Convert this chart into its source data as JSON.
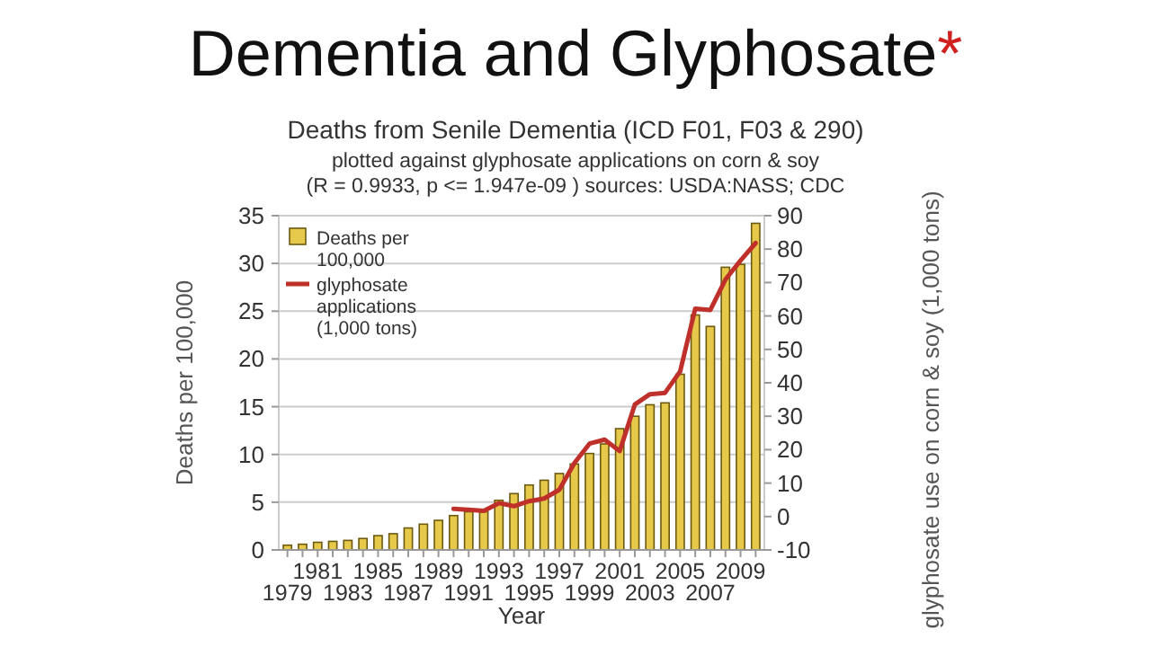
{
  "chart_data": {
    "type": "bar",
    "title": "Dementia and Glyphosate*",
    "subtitle": "Deaths from Senile Dementia (ICD F01, F03 & 290)",
    "annotations": [
      "plotted against glyphosate applications on corn & soy",
      "(R = 0.9933, p <= 1.947e-09 ) sources: USDA:NASS; CDC"
    ],
    "xlabel": "Year",
    "ylabel": "Deaths per 100,000",
    "y2label": "glyphosate use on corn & soy (1,000 tons)",
    "categories": [
      "1979",
      null,
      "1981",
      null,
      "1983",
      null,
      "1985",
      null,
      "1987",
      null,
      "1989",
      null,
      "1991",
      null,
      "1993",
      null,
      "1995",
      null,
      "1997",
      null,
      "1999",
      null,
      "2001",
      null,
      "2003",
      null,
      "2005",
      null,
      "2007",
      null,
      "2009",
      null
    ],
    "series": [
      {
        "name": "Deaths per 100,000",
        "color": "#e6c84a",
        "values": [
          0.5,
          0.6,
          0.8,
          0.9,
          1.0,
          1.2,
          1.5,
          1.7,
          2.3,
          2.7,
          3.1,
          3.6,
          4.0,
          4.0,
          5.2,
          5.9,
          6.8,
          7.3,
          8.0,
          9.0,
          10.1,
          11.1,
          12.7,
          14.0,
          15.2,
          15.4,
          18.4,
          24.6,
          23.4,
          29.6,
          29.9,
          34.2
        ]
      },
      {
        "name": "glyphosate applications (1,000 tons)",
        "type": "line",
        "axis": "y2",
        "color": "#c0302a",
        "values": [
          null,
          null,
          null,
          null,
          null,
          null,
          null,
          null,
          null,
          null,
          null,
          2.3,
          2,
          1.7,
          4,
          3.1,
          4.6,
          5.4,
          8,
          16,
          21.8,
          23,
          19.6,
          33.5,
          36.6,
          37,
          43.4,
          62.2,
          61.8,
          70.9,
          76.6,
          81.8
        ]
      }
    ],
    "ylim": [
      0,
      35
    ],
    "yticks": [
      0,
      5,
      10,
      15,
      20,
      25,
      30,
      35
    ],
    "y2lim": [
      -10,
      90
    ],
    "y2ticks": [
      -10,
      0,
      10,
      20,
      30,
      40,
      50,
      60,
      70,
      80,
      90
    ],
    "grid": "y",
    "legend": "top left",
    "marker": "none",
    "line_style": "solid"
  }
}
